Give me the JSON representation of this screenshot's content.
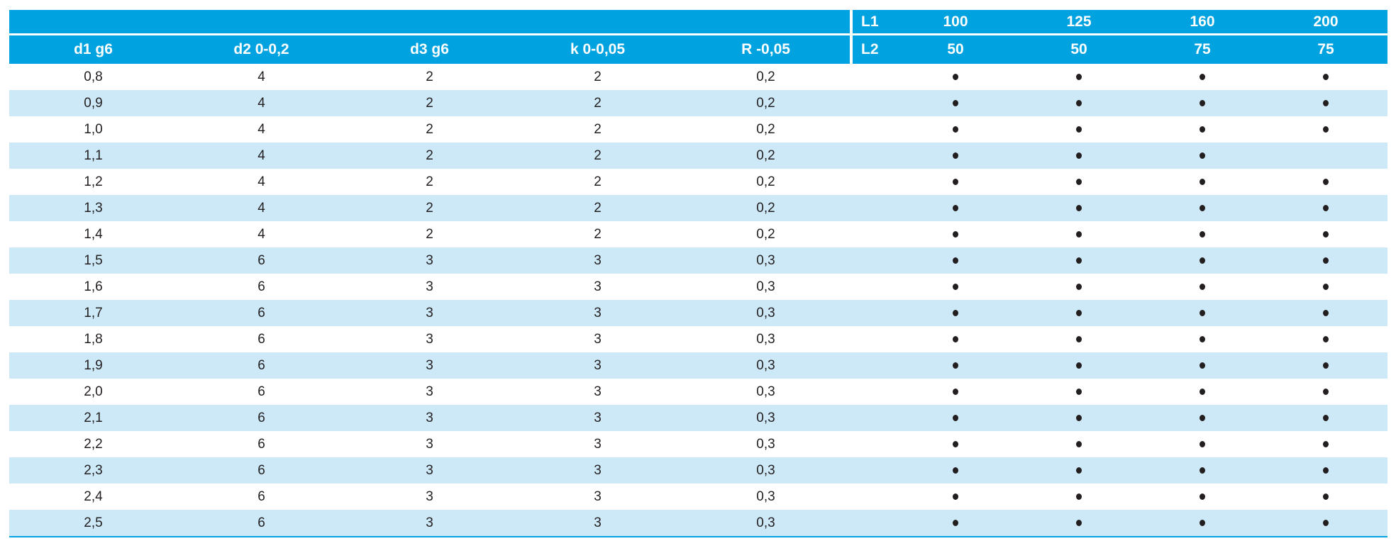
{
  "colors": {
    "header_bg": "#00A3E0",
    "stripe_bg": "#CDE9F8",
    "text_dark": "#231F20",
    "header_text": "#FFFFFF",
    "dot": "#231F20"
  },
  "table": {
    "column_headers": [
      "d1 g6",
      "d2 0-0,2",
      "d3 g6",
      "k 0-0,05",
      "R -0,05"
    ],
    "l1": {
      "label": "L1",
      "values": [
        "100",
        "125",
        "160",
        "200"
      ]
    },
    "l2": {
      "label": "L2",
      "values": [
        "50",
        "50",
        "75",
        "75"
      ]
    },
    "rows": [
      {
        "d1": "0,8",
        "d2": "4",
        "d3": "2",
        "k": "2",
        "r": "0,2",
        "available": [
          true,
          true,
          true,
          true
        ]
      },
      {
        "d1": "0,9",
        "d2": "4",
        "d3": "2",
        "k": "2",
        "r": "0,2",
        "available": [
          true,
          true,
          true,
          true
        ]
      },
      {
        "d1": "1,0",
        "d2": "4",
        "d3": "2",
        "k": "2",
        "r": "0,2",
        "available": [
          true,
          true,
          true,
          true
        ]
      },
      {
        "d1": "1,1",
        "d2": "4",
        "d3": "2",
        "k": "2",
        "r": "0,2",
        "available": [
          true,
          true,
          true,
          false
        ]
      },
      {
        "d1": "1,2",
        "d2": "4",
        "d3": "2",
        "k": "2",
        "r": "0,2",
        "available": [
          true,
          true,
          true,
          true
        ]
      },
      {
        "d1": "1,3",
        "d2": "4",
        "d3": "2",
        "k": "2",
        "r": "0,2",
        "available": [
          true,
          true,
          true,
          true
        ]
      },
      {
        "d1": "1,4",
        "d2": "4",
        "d3": "2",
        "k": "2",
        "r": "0,2",
        "available": [
          true,
          true,
          true,
          true
        ]
      },
      {
        "d1": "1,5",
        "d2": "6",
        "d3": "3",
        "k": "3",
        "r": "0,3",
        "available": [
          true,
          true,
          true,
          true
        ]
      },
      {
        "d1": "1,6",
        "d2": "6",
        "d3": "3",
        "k": "3",
        "r": "0,3",
        "available": [
          true,
          true,
          true,
          true
        ]
      },
      {
        "d1": "1,7",
        "d2": "6",
        "d3": "3",
        "k": "3",
        "r": "0,3",
        "available": [
          true,
          true,
          true,
          true
        ]
      },
      {
        "d1": "1,8",
        "d2": "6",
        "d3": "3",
        "k": "3",
        "r": "0,3",
        "available": [
          true,
          true,
          true,
          true
        ]
      },
      {
        "d1": "1,9",
        "d2": "6",
        "d3": "3",
        "k": "3",
        "r": "0,3",
        "available": [
          true,
          true,
          true,
          true
        ]
      },
      {
        "d1": "2,0",
        "d2": "6",
        "d3": "3",
        "k": "3",
        "r": "0,3",
        "available": [
          true,
          true,
          true,
          true
        ]
      },
      {
        "d1": "2,1",
        "d2": "6",
        "d3": "3",
        "k": "3",
        "r": "0,3",
        "available": [
          true,
          true,
          true,
          true
        ]
      },
      {
        "d1": "2,2",
        "d2": "6",
        "d3": "3",
        "k": "3",
        "r": "0,3",
        "available": [
          true,
          true,
          true,
          true
        ]
      },
      {
        "d1": "2,3",
        "d2": "6",
        "d3": "3",
        "k": "3",
        "r": "0,3",
        "available": [
          true,
          true,
          true,
          true
        ]
      },
      {
        "d1": "2,4",
        "d2": "6",
        "d3": "3",
        "k": "3",
        "r": "0,3",
        "available": [
          true,
          true,
          true,
          true
        ]
      },
      {
        "d1": "2,5",
        "d2": "6",
        "d3": "3",
        "k": "3",
        "r": "0,3",
        "available": [
          true,
          true,
          true,
          true
        ]
      }
    ]
  }
}
